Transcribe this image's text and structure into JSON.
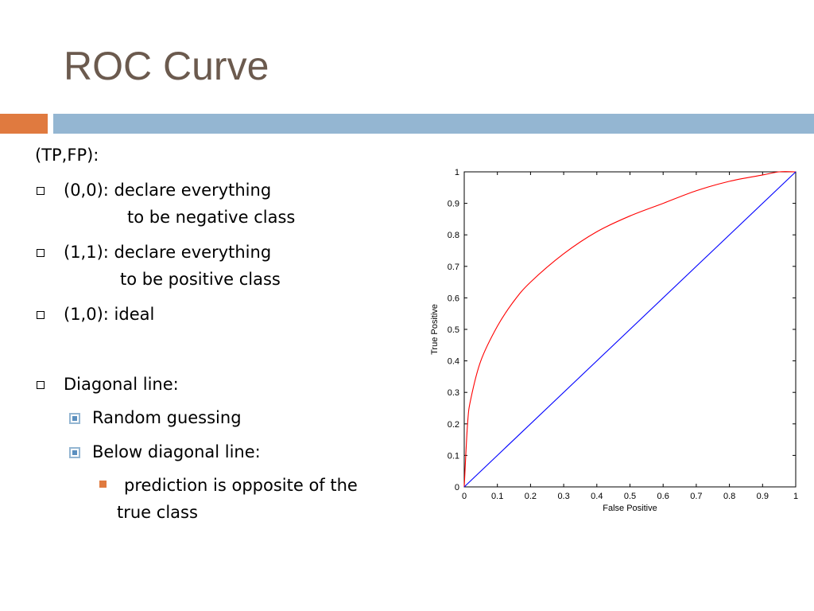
{
  "slide": {
    "title": "ROC Curve",
    "intro": "(TP,FP):",
    "bullets": [
      {
        "line1": "(0,0): declare everything",
        "line2": "to be negative class"
      },
      {
        "line1": "(1,1): declare everything",
        "line2": "to be positive class"
      },
      {
        "line1": "(1,0): ideal"
      },
      {
        "line1": "Diagonal line:"
      }
    ],
    "sub_bullets": [
      "Random guessing",
      "Below diagonal line:"
    ],
    "sub_sub_bullet": {
      "line1": "prediction is opposite of the",
      "line2": "true class"
    }
  },
  "colors": {
    "title": "#6b5a4e",
    "accent_orange": "#e07a3f",
    "accent_blue": "#94b6d2",
    "roc_curve": "#ff0000",
    "diagonal": "#0000ff"
  },
  "chart_data": {
    "type": "line",
    "xlabel": "False Positive",
    "ylabel": "True Positive",
    "xlim": [
      0,
      1
    ],
    "ylim": [
      0,
      1
    ],
    "x_ticks": [
      "0",
      "0.1",
      "0.2",
      "0.3",
      "0.4",
      "0.5",
      "0.6",
      "0.7",
      "0.8",
      "0.9",
      "1"
    ],
    "y_ticks": [
      "0",
      "0.1",
      "0.2",
      "0.3",
      "0.4",
      "0.5",
      "0.6",
      "0.7",
      "0.8",
      "0.9",
      "1"
    ],
    "grid": false,
    "series": [
      {
        "color": "#ff0000",
        "x": [
          0,
          0.01,
          0.02,
          0.05,
          0.1,
          0.15,
          0.2,
          0.3,
          0.4,
          0.5,
          0.6,
          0.7,
          0.8,
          0.9,
          0.95,
          1
        ],
        "y": [
          0,
          0.2,
          0.28,
          0.4,
          0.51,
          0.59,
          0.65,
          0.74,
          0.81,
          0.86,
          0.9,
          0.94,
          0.97,
          0.99,
          1,
          1
        ]
      },
      {
        "color": "#0000ff",
        "x": [
          0,
          1
        ],
        "y": [
          0,
          1
        ]
      }
    ]
  }
}
